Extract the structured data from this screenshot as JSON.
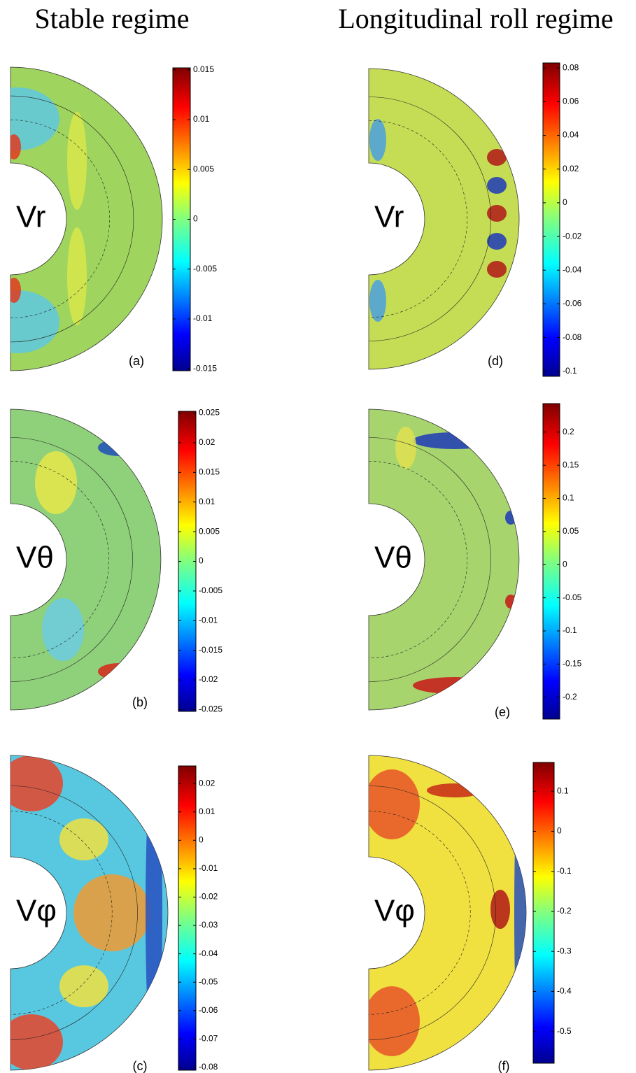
{
  "figure": {
    "column_titles": [
      "Stable regime",
      "Longitudinal roll regime"
    ],
    "panels": [
      {
        "label": "(a)",
        "variable": "Vr",
        "colorbar": {
          "lim": [
            -0.0152,
            0.0152
          ],
          "ticks": [
            0.015,
            0.01,
            0.005,
            0,
            -0.005,
            -0.01,
            -0.015
          ]
        }
      },
      {
        "label": "(b)",
        "variable": "Vθ",
        "colorbar": {
          "lim": [
            -0.0253,
            0.0253
          ],
          "ticks": [
            0.025,
            0.02,
            0.015,
            0.01,
            0.005,
            0,
            -0.005,
            -0.01,
            -0.015,
            -0.02,
            -0.025
          ]
        }
      },
      {
        "label": "(c)",
        "variable": "Vφ",
        "colorbar": {
          "lim": [
            -0.081,
            0.0262
          ],
          "ticks": [
            0.02,
            0.01,
            0,
            -0.01,
            -0.02,
            -0.03,
            -0.04,
            -0.05,
            -0.06,
            -0.07,
            -0.08
          ]
        }
      },
      {
        "label": "(d)",
        "variable": "Vr",
        "colorbar": {
          "lim": [
            -0.103,
            0.083
          ],
          "ticks": [
            0.08,
            0.06,
            0.04,
            0.02,
            0,
            -0.02,
            -0.04,
            -0.06,
            -0.08,
            -0.1
          ]
        }
      },
      {
        "label": "(e)",
        "variable": "Vθ",
        "colorbar": {
          "lim": [
            -0.233,
            0.243
          ],
          "ticks": [
            0.2,
            0.15,
            0.1,
            0.05,
            0,
            -0.05,
            -0.1,
            -0.15,
            -0.2
          ]
        }
      },
      {
        "label": "(f)",
        "variable": "Vφ",
        "colorbar": {
          "lim": [
            -0.579,
            0.172
          ],
          "ticks": [
            0.1,
            0,
            -0.1,
            -0.2,
            -0.3,
            -0.4,
            -0.5
          ]
        }
      }
    ]
  }
}
